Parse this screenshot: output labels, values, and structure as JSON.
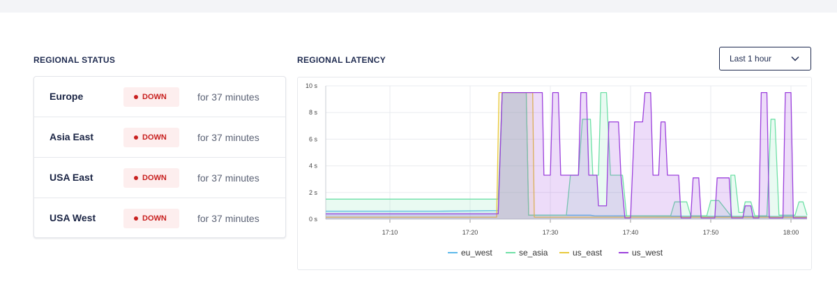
{
  "regional_status": {
    "title": "REGIONAL STATUS",
    "regions": [
      {
        "name": "Europe",
        "status": "DOWN",
        "duration": "for 37 minutes"
      },
      {
        "name": "Asia East",
        "status": "DOWN",
        "duration": "for 37 minutes"
      },
      {
        "name": "USA East",
        "status": "DOWN",
        "duration": "for 37 minutes"
      },
      {
        "name": "USA West",
        "status": "DOWN",
        "duration": "for 37 minutes"
      }
    ]
  },
  "regional_latency": {
    "title": "REGIONAL LATENCY",
    "range_select": {
      "selected": "Last 1 hour"
    }
  },
  "colors": {
    "status_down": "#c8201f",
    "eu_west": "#5bb8ea",
    "se_asia": "#6ee0a6",
    "us_east": "#e8c93a",
    "us_west": "#9b3fdc"
  },
  "chart_data": {
    "type": "area",
    "title": "REGIONAL LATENCY",
    "x_unit": "minutes",
    "xlim": [
      0,
      60
    ],
    "ylim": [
      0,
      10
    ],
    "x_ticks": [
      8,
      18,
      28,
      38,
      48,
      58
    ],
    "x_tick_labels": [
      "17:10",
      "17:20",
      "17:30",
      "17:40",
      "17:50",
      "18:00"
    ],
    "y_ticks": [
      0,
      2,
      4,
      6,
      8,
      10
    ],
    "y_tick_labels": [
      "0 s",
      "2 s",
      "4 s",
      "6 s",
      "8 s",
      "10 s"
    ],
    "legend": [
      "eu_west",
      "se_asia",
      "us_east",
      "us_west"
    ],
    "series": [
      {
        "name": "eu_west",
        "points": [
          [
            0,
            0.6
          ],
          [
            14,
            0.6
          ],
          [
            21.5,
            0.65
          ],
          [
            22,
            9.5
          ],
          [
            25,
            9.5
          ],
          [
            25.3,
            0.3
          ],
          [
            33,
            0.3
          ],
          [
            33.5,
            0.25
          ],
          [
            60,
            0.2
          ]
        ]
      },
      {
        "name": "se_asia",
        "points": [
          [
            0,
            1.5
          ],
          [
            21.5,
            1.5
          ],
          [
            22,
            9.5
          ],
          [
            25,
            9.5
          ],
          [
            25.3,
            0.3
          ],
          [
            30,
            0.3
          ],
          [
            30.5,
            3.3
          ],
          [
            31.5,
            3.3
          ],
          [
            32,
            7.5
          ],
          [
            33,
            7.5
          ],
          [
            33.3,
            3.3
          ],
          [
            34,
            3.3
          ],
          [
            34.3,
            9.5
          ],
          [
            35,
            9.5
          ],
          [
            35.5,
            3.3
          ],
          [
            37,
            3.3
          ],
          [
            37.5,
            0.25
          ],
          [
            43,
            0.25
          ],
          [
            43.5,
            1.3
          ],
          [
            45,
            1.3
          ],
          [
            45.5,
            0.25
          ],
          [
            47.5,
            0.25
          ],
          [
            48,
            1.4
          ],
          [
            49,
            1.4
          ],
          [
            50.5,
            0.25
          ],
          [
            50.5,
            3.3
          ],
          [
            51,
            3.3
          ],
          [
            51.5,
            0.5
          ],
          [
            52,
            0.5
          ],
          [
            52.3,
            1.3
          ],
          [
            53,
            1.3
          ],
          [
            53.5,
            0.25
          ],
          [
            55,
            0.25
          ],
          [
            55.5,
            7.5
          ],
          [
            56,
            7.5
          ],
          [
            56.5,
            0.3
          ],
          [
            58.5,
            0.3
          ],
          [
            59,
            1.3
          ],
          [
            59.5,
            1.3
          ],
          [
            60,
            0.3
          ]
        ]
      },
      {
        "name": "us_east",
        "points": [
          [
            0,
            0.15
          ],
          [
            21.3,
            0.15
          ],
          [
            21.6,
            9.5
          ],
          [
            25.8,
            9.5
          ],
          [
            26,
            0.15
          ],
          [
            60,
            0.15
          ]
        ]
      },
      {
        "name": "us_west",
        "points": [
          [
            0,
            0.4
          ],
          [
            21.5,
            0.4
          ],
          [
            22,
            9.5
          ],
          [
            27,
            9.5
          ],
          [
            27.2,
            3.3
          ],
          [
            28,
            3.3
          ],
          [
            28.3,
            9.5
          ],
          [
            29,
            9.5
          ],
          [
            29.3,
            3.3
          ],
          [
            31.5,
            3.3
          ],
          [
            31.8,
            9.5
          ],
          [
            32.5,
            9.5
          ],
          [
            32.8,
            3.3
          ],
          [
            33.8,
            3.3
          ],
          [
            34,
            1.0
          ],
          [
            35,
            1.0
          ],
          [
            35.3,
            7.3
          ],
          [
            36.5,
            7.3
          ],
          [
            36.8,
            3.3
          ],
          [
            37.3,
            0.1
          ],
          [
            38,
            0.1
          ],
          [
            38.5,
            7.3
          ],
          [
            39.5,
            7.3
          ],
          [
            39.8,
            9.5
          ],
          [
            40.5,
            9.5
          ],
          [
            40.8,
            3.3
          ],
          [
            41.5,
            3.3
          ],
          [
            41.8,
            7.3
          ],
          [
            42.3,
            7.3
          ],
          [
            42.6,
            3.3
          ],
          [
            44,
            3.3
          ],
          [
            44.3,
            0.1
          ],
          [
            45.5,
            0.1
          ],
          [
            45.8,
            3.1
          ],
          [
            46.5,
            3.1
          ],
          [
            46.8,
            0.1
          ],
          [
            48.5,
            0.1
          ],
          [
            48.8,
            3.1
          ],
          [
            50.3,
            3.1
          ],
          [
            50.6,
            0.1
          ],
          [
            52,
            0.1
          ],
          [
            52.3,
            1.0
          ],
          [
            53,
            1.0
          ],
          [
            53.3,
            0.1
          ],
          [
            54,
            0.1
          ],
          [
            54.3,
            9.5
          ],
          [
            55,
            9.5
          ],
          [
            55.3,
            0.1
          ],
          [
            57,
            0.1
          ],
          [
            57.3,
            9.5
          ],
          [
            58,
            9.5
          ],
          [
            58.3,
            0.1
          ],
          [
            60,
            0.1
          ]
        ]
      }
    ]
  }
}
